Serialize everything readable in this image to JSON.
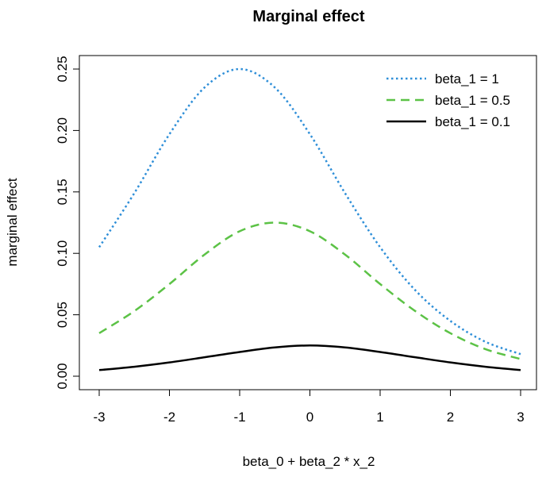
{
  "chart_data": {
    "type": "line",
    "title": "Marginal effect",
    "xlabel": "beta_0 + beta_2 * x_2",
    "ylabel": "marginal effect",
    "xlim": [
      -3,
      3
    ],
    "ylim": [
      0,
      0.25
    ],
    "x_ticks": [
      "-3",
      "-2",
      "-1",
      "0",
      "1",
      "2",
      "3"
    ],
    "y_ticks": [
      "0.00",
      "0.05",
      "0.10",
      "0.15",
      "0.20",
      "0.25"
    ],
    "grid": false,
    "legend_position": "top-right",
    "x": [
      -3.0,
      -2.5,
      -2.0,
      -1.5,
      -1.0,
      -0.5,
      0.0,
      0.5,
      1.0,
      1.5,
      2.0,
      2.5,
      3.0
    ],
    "series": [
      {
        "name": "beta_1 = 1",
        "color": "#2f8fd8",
        "linestyle": "dotted",
        "values": [
          0.105,
          0.149,
          0.197,
          0.235,
          0.25,
          0.235,
          0.197,
          0.149,
          0.105,
          0.07,
          0.045,
          0.028,
          0.018
        ]
      },
      {
        "name": "beta_1 = 0.5",
        "color": "#5cc246",
        "linestyle": "dashed",
        "values": [
          0.035,
          0.053,
          0.075,
          0.099,
          0.118,
          0.125,
          0.118,
          0.099,
          0.075,
          0.053,
          0.035,
          0.022,
          0.014
        ]
      },
      {
        "name": "beta_1 = 0.1",
        "color": "#000000",
        "linestyle": "solid",
        "values": [
          0.005,
          0.0077,
          0.0112,
          0.0154,
          0.0197,
          0.0234,
          0.025,
          0.0234,
          0.0197,
          0.0154,
          0.0112,
          0.0077,
          0.005
        ]
      }
    ]
  }
}
